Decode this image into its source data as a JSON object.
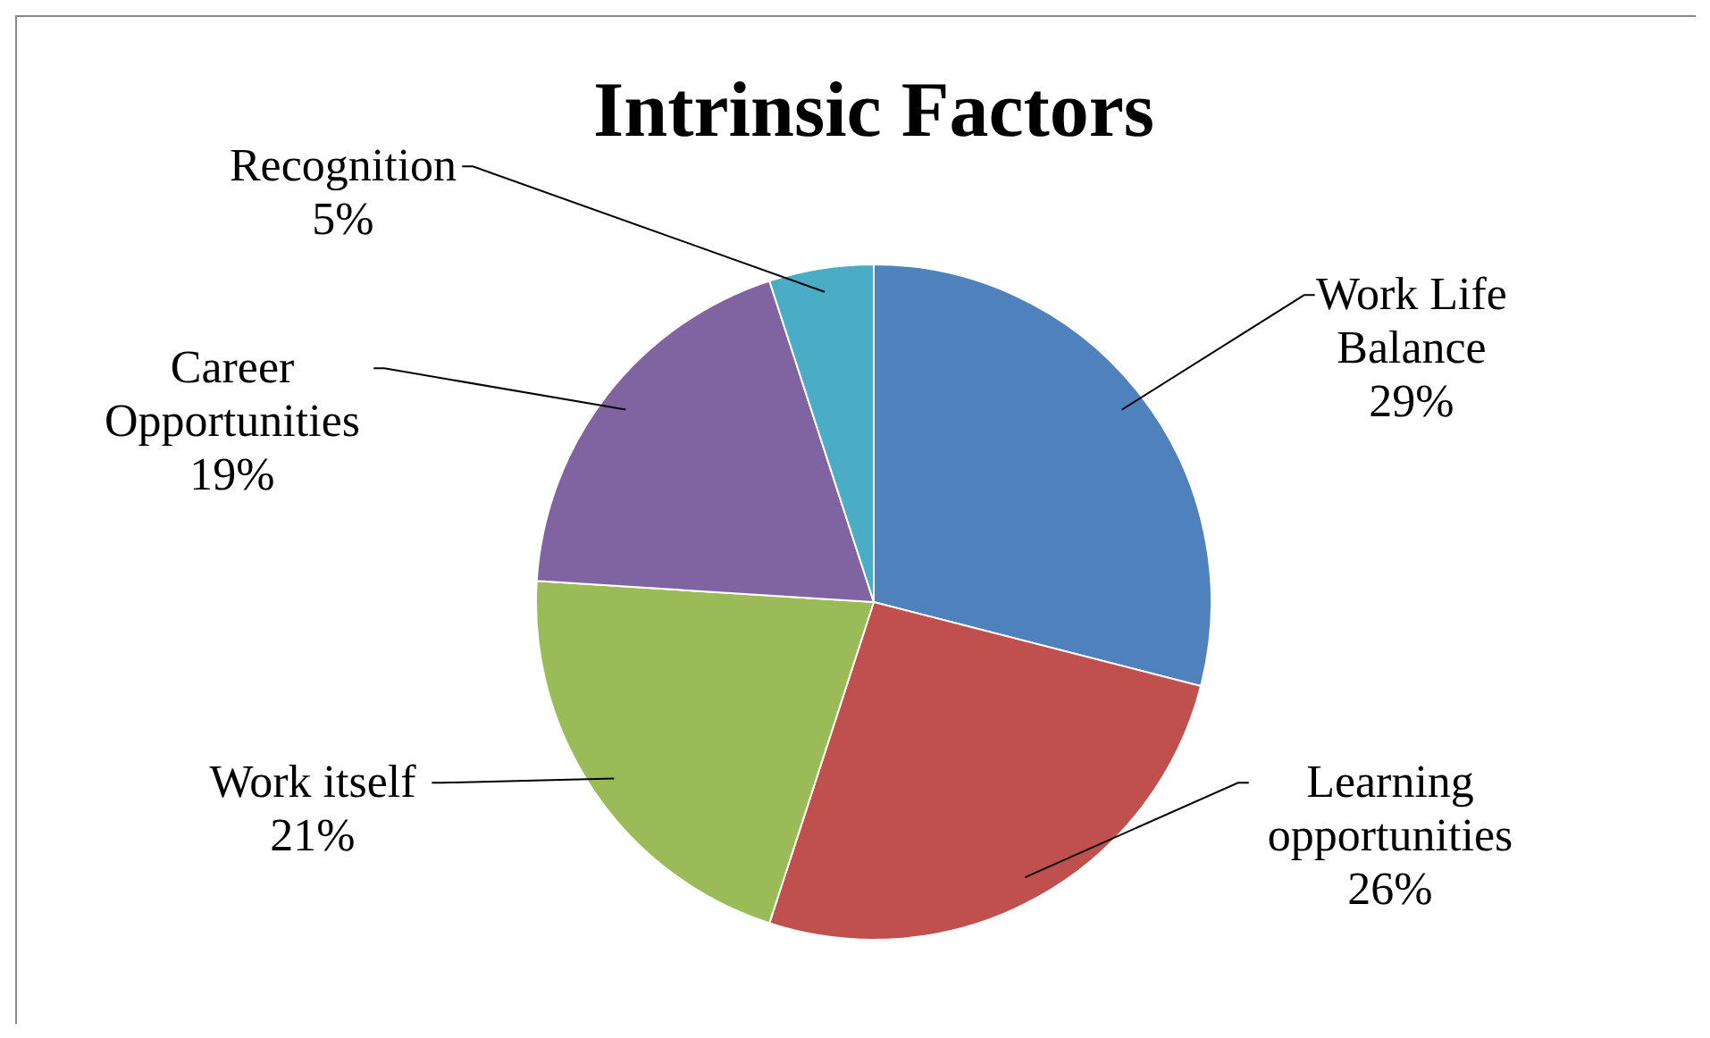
{
  "chart_data": {
    "type": "pie",
    "title": "Intrinsic Factors",
    "categories": [
      "Work Life Balance",
      "Learning opportunities",
      "Work itself",
      "Career Opportunities",
      "Recognition"
    ],
    "values": [
      29,
      26,
      21,
      19,
      5
    ],
    "colors": [
      "#4f81bd",
      "#c0504d",
      "#9bbb59",
      "#8064a2",
      "#4bacc6"
    ],
    "value_labels": [
      "29%",
      "26%",
      "21%",
      "19%",
      "5%"
    ]
  }
}
